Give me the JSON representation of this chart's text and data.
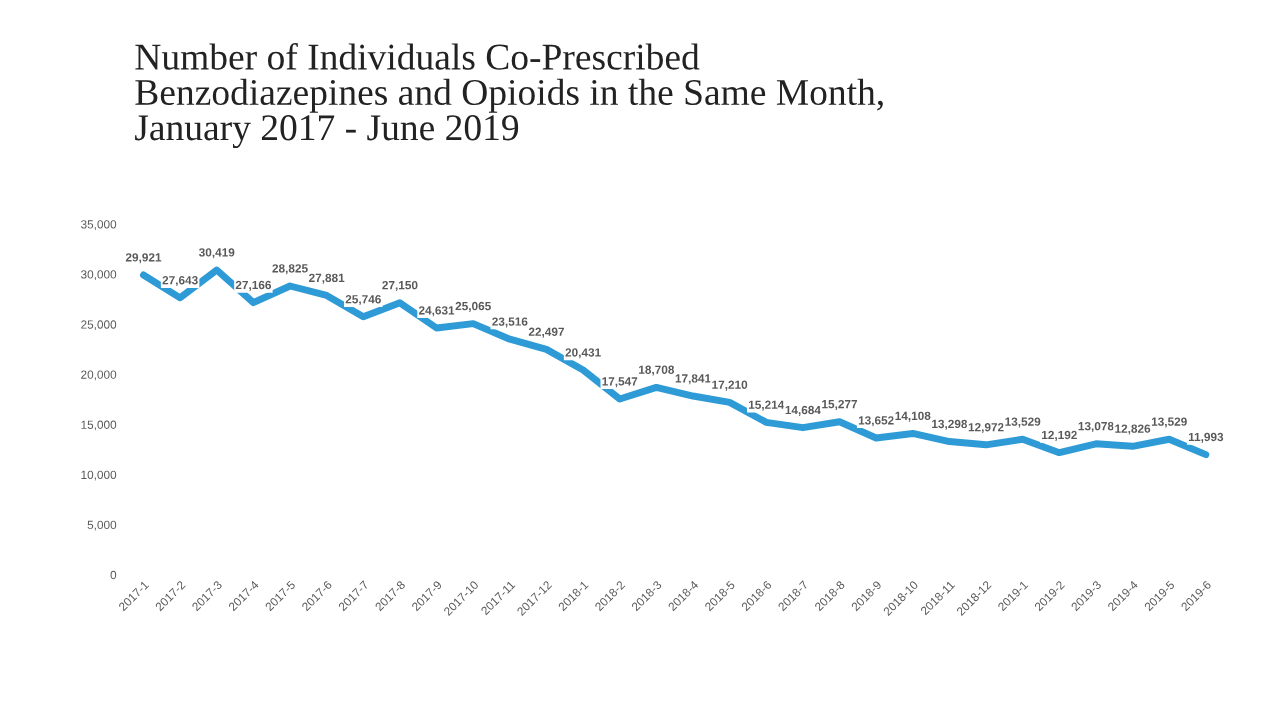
{
  "chart_data": {
    "type": "line",
    "title": "Number of Individuals Co-Prescribed\nBenzodiazepines and Opioids in the Same Month,\nJanuary 2017 - June 2019",
    "categories": [
      "2017-1",
      "2017-2",
      "2017-3",
      "2017-4",
      "2017-5",
      "2017-6",
      "2017-7",
      "2017-8",
      "2017-9",
      "2017-10",
      "2017-11",
      "2017-12",
      "2018-1",
      "2018-2",
      "2018-3",
      "2018-4",
      "2018-5",
      "2018-6",
      "2018-7",
      "2018-8",
      "2018-9",
      "2018-10",
      "2018-11",
      "2018-12",
      "2019-1",
      "2019-2",
      "2019-3",
      "2019-4",
      "2019-5",
      "2019-6"
    ],
    "series": [
      {
        "color": "#2e9bd6",
        "values": [
          29921,
          27643,
          30419,
          27166,
          28825,
          27881,
          25746,
          27150,
          24631,
          25065,
          23516,
          22497,
          20431,
          17547,
          18708,
          17841,
          17210,
          15214,
          14684,
          15277,
          13652,
          14108,
          13298,
          12972,
          13529,
          12192,
          13078,
          12826,
          13529,
          11993
        ],
        "value_labels": [
          "29,921",
          "27,643",
          "30,419",
          "27,166",
          "28,825",
          "27,881",
          "25,746",
          "27,150",
          "24,631",
          "25,065",
          "23,516",
          "22,497",
          "20,431",
          "17,547",
          "18,708",
          "17,841",
          "17,210",
          "15,214",
          "14,684",
          "15,277",
          "13,652",
          "14,108",
          "13,298",
          "12,972",
          "13,529",
          "12,192",
          "13,078",
          "12,826",
          "13,529",
          "11,993"
        ]
      }
    ],
    "ylim": [
      0,
      35000
    ],
    "yticks": [
      0,
      {
        "value": 5000,
        "label": "5,000"
      },
      {
        "value": 10000,
        "label": "10,000"
      },
      {
        "value": 15000,
        "label": "15,000"
      },
      {
        "value": 20000,
        "label": "20,000"
      },
      {
        "value": 25000,
        "label": "25,000"
      },
      {
        "value": 30000,
        "label": "30,000"
      },
      {
        "value": 35000,
        "label": "35,000"
      }
    ],
    "grid": false,
    "marker": "none",
    "line_style": "solid"
  }
}
